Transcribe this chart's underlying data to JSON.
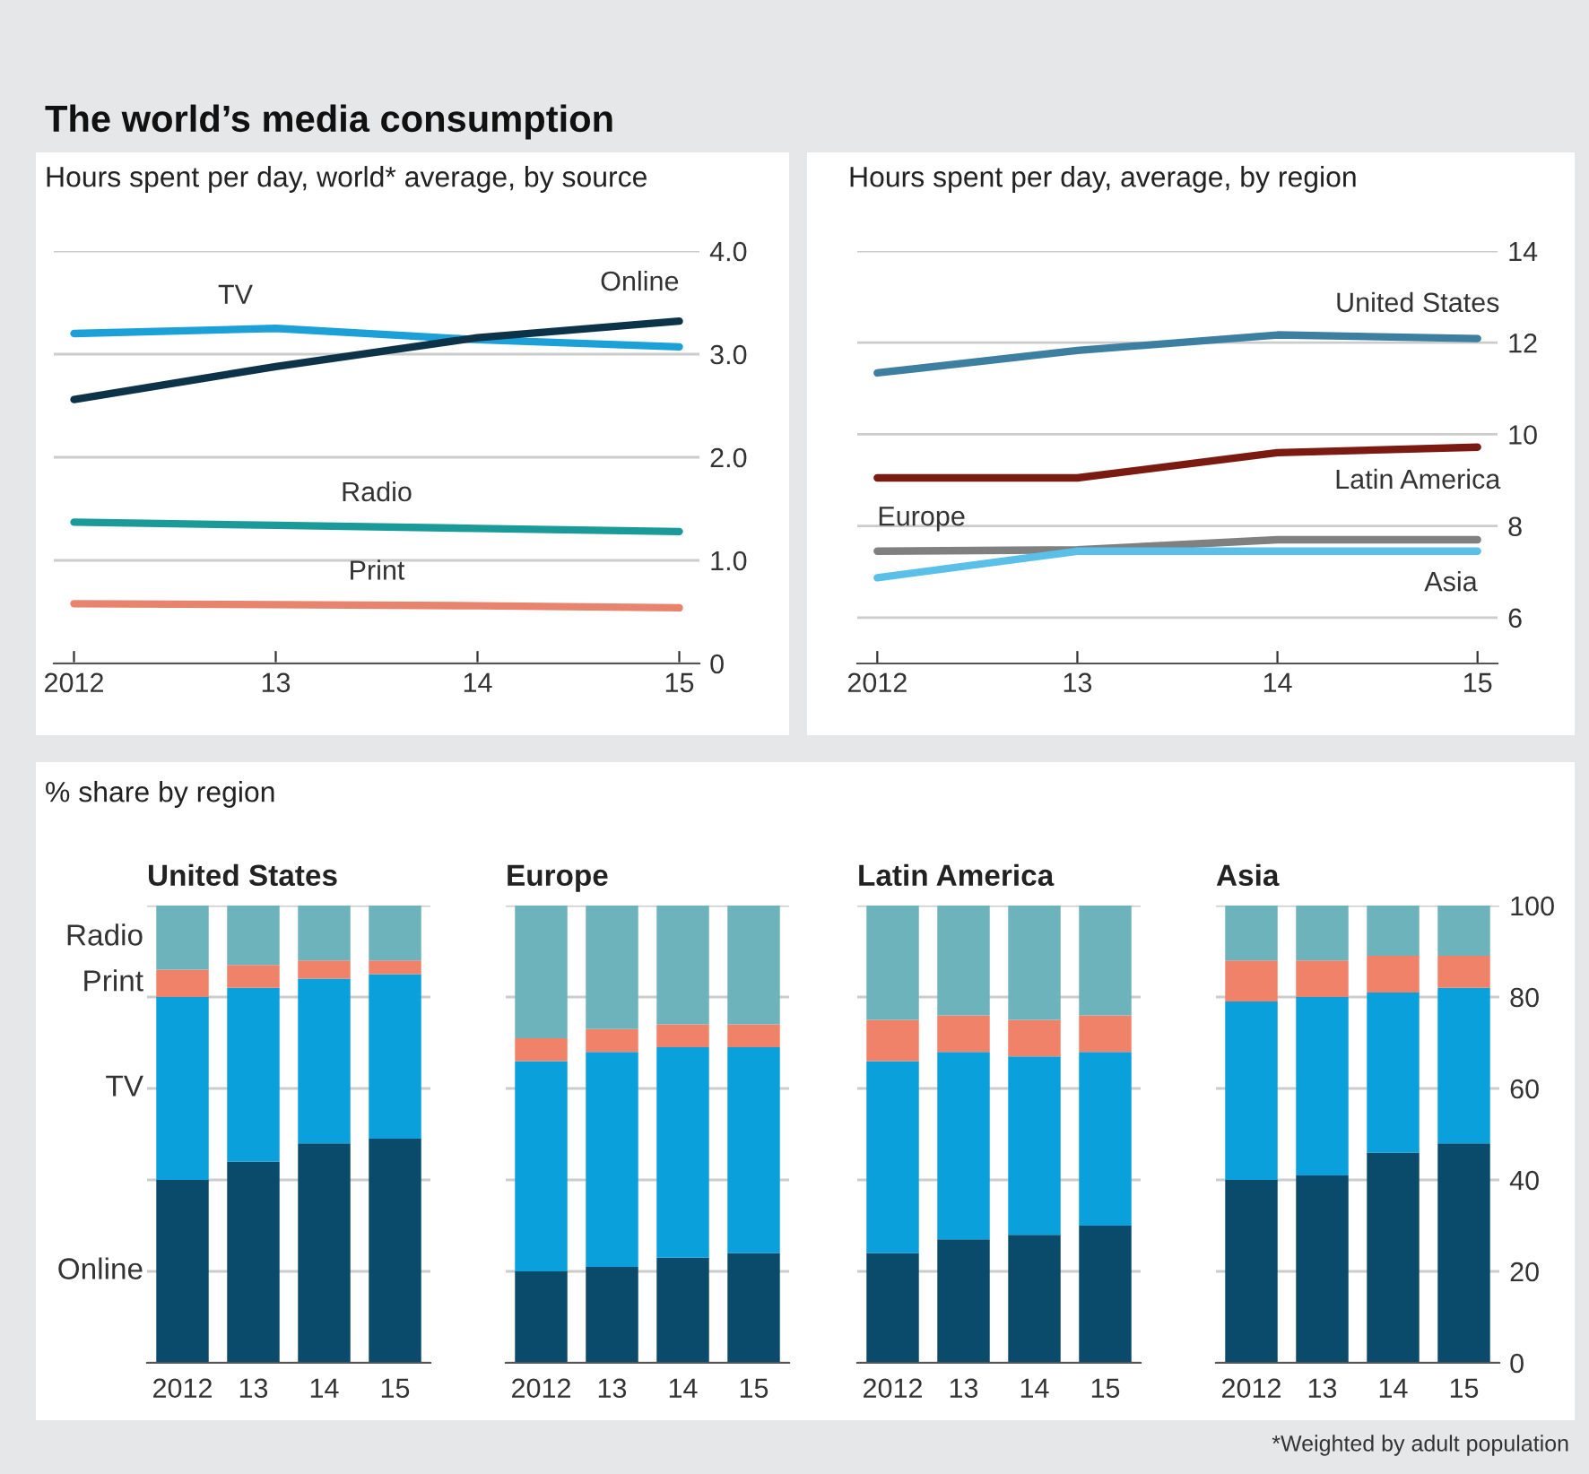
{
  "chart_data": [
    {
      "type": "line",
      "title": "The world’s media consumption",
      "subtitle": "Hours spent per day, world* average, by source",
      "x": [
        2012,
        2013,
        2014,
        2015
      ],
      "xlim": [
        2011.9,
        2015.1
      ],
      "xticks": [
        {
          "value": 2012,
          "label": "2012"
        },
        {
          "value": 2013,
          "label": "13"
        },
        {
          "value": 2014,
          "label": "14"
        },
        {
          "value": 2015,
          "label": "15"
        }
      ],
      "ylim": [
        0,
        4
      ],
      "yticks": [
        0,
        {
          "value": 1,
          "label": "1.0"
        },
        {
          "value": 2,
          "label": "2.0"
        },
        {
          "value": 3,
          "label": "3.0"
        },
        {
          "value": 4,
          "label": "4.0"
        }
      ],
      "grid": "y",
      "series": [
        {
          "name": "TV",
          "color": "#1ba0d8",
          "values": [
            3.2,
            3.25,
            3.14,
            3.07
          ]
        },
        {
          "name": "Online",
          "color": "#0d3349",
          "values": [
            2.56,
            2.88,
            3.16,
            3.32
          ]
        },
        {
          "name": "Radio",
          "color": "#1b9a9a",
          "values": [
            1.37,
            1.34,
            1.31,
            1.28
          ]
        },
        {
          "name": "Print",
          "color": "#e8836e",
          "values": [
            0.58,
            0.57,
            0.56,
            0.54
          ]
        }
      ]
    },
    {
      "type": "line",
      "subtitle": "Hours spent per day, average, by region",
      "x": [
        2012,
        2013,
        2014,
        2015
      ],
      "xlim": [
        2011.9,
        2015.1
      ],
      "xticks": [
        {
          "value": 2012,
          "label": "2012"
        },
        {
          "value": 2013,
          "label": "13"
        },
        {
          "value": 2014,
          "label": "14"
        },
        {
          "value": 2015,
          "label": "15"
        }
      ],
      "ylim": [
        5,
        14
      ],
      "yticks": [
        6,
        8,
        10,
        12,
        14
      ],
      "grid": "y",
      "series": [
        {
          "name": "United States",
          "color": "#3c7fa0",
          "values": [
            11.34,
            11.83,
            12.17,
            12.09
          ]
        },
        {
          "name": "Latin America",
          "color": "#7a1a10",
          "values": [
            9.05,
            9.05,
            9.6,
            9.72
          ]
        },
        {
          "name": "Europe",
          "color": "#808080",
          "values": [
            7.45,
            7.48,
            7.7,
            7.7
          ]
        },
        {
          "name": "Asia",
          "color": "#5bc0e8",
          "values": [
            6.87,
            7.45,
            7.45,
            7.45
          ]
        }
      ]
    },
    {
      "type": "bar",
      "stacked": true,
      "title": "% share by region",
      "subtitle": "United States",
      "categories": [
        "2012",
        "13",
        "14",
        "15"
      ],
      "ylim": [
        0,
        100
      ],
      "yticks": [
        0,
        20,
        40,
        60,
        80,
        100
      ],
      "grid": "y",
      "tick_labels": "x",
      "series": [
        {
          "name": "Online",
          "color": "#0a4a6a",
          "values": [
            40,
            44,
            48,
            49
          ]
        },
        {
          "name": "TV",
          "color": "#0aa0dc",
          "values": [
            40,
            38,
            36,
            36
          ]
        },
        {
          "name": "Print",
          "color": "#f0826a",
          "values": [
            6,
            5,
            4,
            3
          ]
        },
        {
          "name": "Radio",
          "color": "#6cb3bb",
          "values": [
            14,
            13,
            12,
            12
          ]
        }
      ]
    },
    {
      "type": "bar",
      "stacked": true,
      "subtitle": "Europe",
      "categories": [
        "2012",
        "13",
        "14",
        "15"
      ],
      "ylim": [
        0,
        100
      ],
      "yticks": [
        0,
        20,
        40,
        60,
        80,
        100
      ],
      "grid": "y",
      "tick_labels": "x",
      "series": [
        {
          "color": "#0a4a6a",
          "values": [
            20,
            21,
            23,
            24
          ]
        },
        {
          "color": "#0aa0dc",
          "values": [
            46,
            47,
            46,
            45
          ]
        },
        {
          "color": "#f0826a",
          "values": [
            5,
            5,
            5,
            5
          ]
        },
        {
          "color": "#6cb3bb",
          "values": [
            29,
            27,
            26,
            26
          ]
        }
      ]
    },
    {
      "type": "bar",
      "stacked": true,
      "subtitle": "Latin America",
      "categories": [
        "2012",
        "13",
        "14",
        "15"
      ],
      "ylim": [
        0,
        100
      ],
      "yticks": [
        0,
        20,
        40,
        60,
        80,
        100
      ],
      "grid": "y",
      "tick_labels": "x",
      "series": [
        {
          "color": "#0a4a6a",
          "values": [
            24,
            27,
            28,
            30
          ]
        },
        {
          "color": "#0aa0dc",
          "values": [
            42,
            41,
            39,
            38
          ]
        },
        {
          "color": "#f0826a",
          "values": [
            9,
            8,
            8,
            8
          ]
        },
        {
          "color": "#6cb3bb",
          "values": [
            25,
            24,
            25,
            24
          ]
        }
      ]
    },
    {
      "type": "bar",
      "stacked": true,
      "subtitle": "Asia",
      "categories": [
        "2012",
        "13",
        "14",
        "15"
      ],
      "ylim": [
        0,
        100
      ],
      "yticks": [
        0,
        20,
        40,
        60,
        80,
        100
      ],
      "grid": "y",
      "annotations": [
        "*Weighted by adult population"
      ],
      "series": [
        {
          "color": "#0a4a6a",
          "values": [
            40,
            41,
            46,
            48
          ]
        },
        {
          "color": "#0aa0dc",
          "values": [
            39,
            39,
            35,
            34
          ]
        },
        {
          "color": "#f0826a",
          "values": [
            9,
            8,
            8,
            7
          ]
        },
        {
          "color": "#6cb3bb",
          "values": [
            12,
            12,
            11,
            11
          ]
        }
      ]
    }
  ]
}
